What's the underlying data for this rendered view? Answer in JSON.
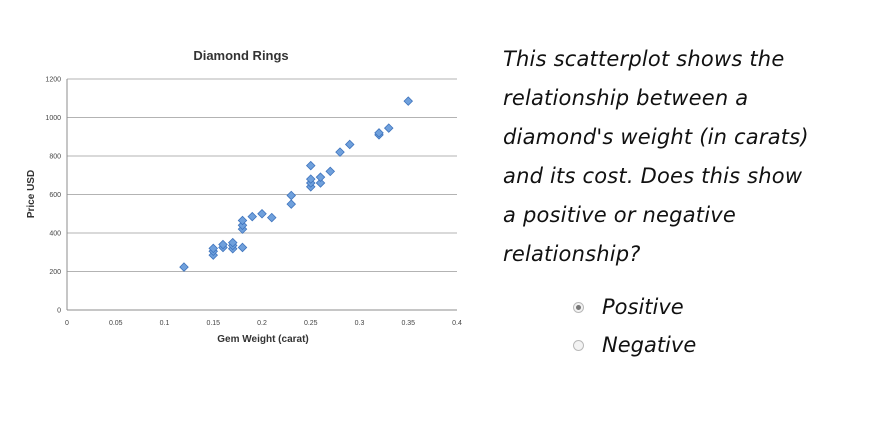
{
  "chart_data": {
    "type": "scatter",
    "title": "Diamond Rings",
    "xlabel": "Gem Weight (carat)",
    "ylabel": "Price USD",
    "xlim": [
      0,
      0.4
    ],
    "ylim": [
      0,
      1200
    ],
    "xticks": [
      0,
      0.05,
      0.1,
      0.15,
      0.2,
      0.25,
      0.3,
      0.35,
      0.4
    ],
    "xtick_labels": [
      "0",
      "0.05",
      "0.1",
      "0.15",
      "0.2",
      "0.25",
      "0.3",
      "0.35",
      "0.4"
    ],
    "yticks": [
      0,
      200,
      400,
      600,
      800,
      1000,
      1200
    ],
    "ytick_labels": [
      "0",
      "200",
      "400",
      "600",
      "800",
      "1000",
      "1200"
    ],
    "grid": "horizontal",
    "legend": "none",
    "marker": "diamond",
    "marker_color": "#6fa0dc",
    "marker_edge": "#3f74bd",
    "points": [
      {
        "x": 0.12,
        "y": 223
      },
      {
        "x": 0.15,
        "y": 285
      },
      {
        "x": 0.15,
        "y": 305
      },
      {
        "x": 0.15,
        "y": 320
      },
      {
        "x": 0.16,
        "y": 325
      },
      {
        "x": 0.16,
        "y": 340
      },
      {
        "x": 0.17,
        "y": 318
      },
      {
        "x": 0.17,
        "y": 335
      },
      {
        "x": 0.17,
        "y": 350
      },
      {
        "x": 0.18,
        "y": 325
      },
      {
        "x": 0.18,
        "y": 420
      },
      {
        "x": 0.18,
        "y": 440
      },
      {
        "x": 0.18,
        "y": 465
      },
      {
        "x": 0.19,
        "y": 485
      },
      {
        "x": 0.2,
        "y": 500
      },
      {
        "x": 0.21,
        "y": 480
      },
      {
        "x": 0.23,
        "y": 550
      },
      {
        "x": 0.23,
        "y": 595
      },
      {
        "x": 0.25,
        "y": 640
      },
      {
        "x": 0.25,
        "y": 660
      },
      {
        "x": 0.25,
        "y": 680
      },
      {
        "x": 0.25,
        "y": 750
      },
      {
        "x": 0.26,
        "y": 660
      },
      {
        "x": 0.26,
        "y": 690
      },
      {
        "x": 0.27,
        "y": 720
      },
      {
        "x": 0.28,
        "y": 820
      },
      {
        "x": 0.29,
        "y": 860
      },
      {
        "x": 0.32,
        "y": 910
      },
      {
        "x": 0.32,
        "y": 920
      },
      {
        "x": 0.33,
        "y": 945
      },
      {
        "x": 0.35,
        "y": 1085
      }
    ]
  },
  "question": {
    "lines": [
      "This scatterplot shows the",
      "relationship between a",
      "diamond's weight (in carats)",
      "and its cost.  Does this show",
      "a positive or negative",
      "relationship?"
    ]
  },
  "options": [
    {
      "label": "Positive",
      "checked": true
    },
    {
      "label": "Negative",
      "checked": false
    }
  ]
}
